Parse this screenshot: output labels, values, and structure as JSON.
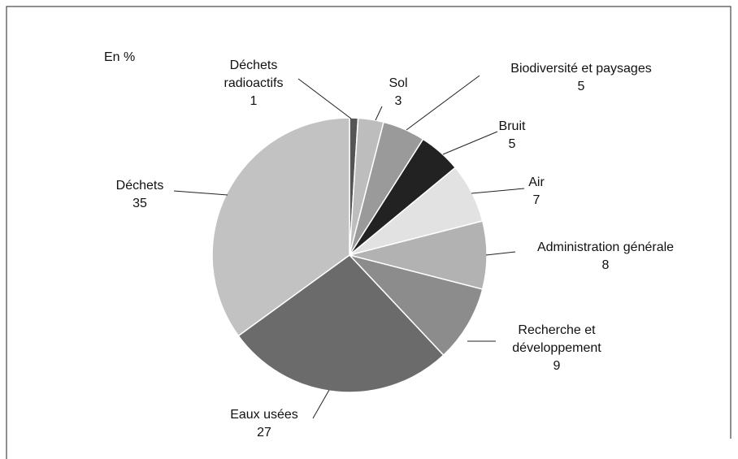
{
  "chart_data": {
    "type": "pie",
    "unit_label": "En %",
    "categories": [
      "Déchets radioactifs",
      "Sol",
      "Biodiversité et paysages",
      "Bruit",
      "Air",
      "Administration générale",
      "Recherche et développement",
      "Eaux usées",
      "Déchets"
    ],
    "values": [
      1,
      3,
      5,
      5,
      7,
      8,
      9,
      27,
      35
    ],
    "colors": [
      "#555555",
      "#bdbdbd",
      "#9a9a9a",
      "#222222",
      "#e2e2e2",
      "#b2b2b2",
      "#8c8c8c",
      "#6b6b6b",
      "#c2c2c2"
    ]
  }
}
